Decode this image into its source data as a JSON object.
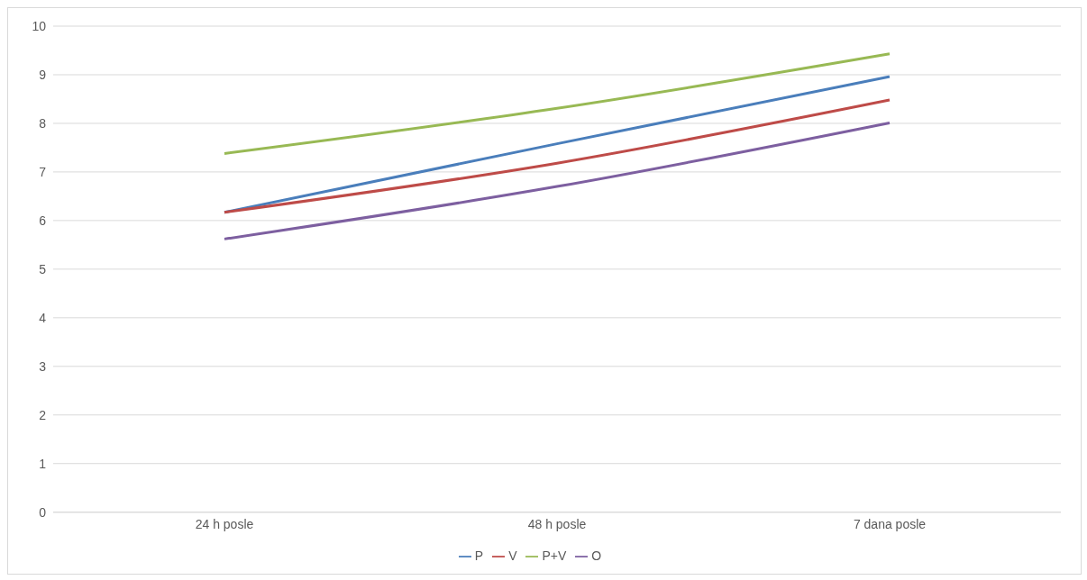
{
  "chart_data": {
    "type": "line",
    "categories": [
      "24 h posle",
      "48 h posle",
      "7 dana posle"
    ],
    "series": [
      {
        "name": "P",
        "color": "#4a7ebb",
        "values": [
          6.17,
          7.58,
          8.96
        ]
      },
      {
        "name": "V",
        "color": "#be4b48",
        "values": [
          6.17,
          7.18,
          8.48
        ]
      },
      {
        "name": "P+V",
        "color": "#98b954",
        "values": [
          7.38,
          8.31,
          9.43
        ]
      },
      {
        "name": "O",
        "color": "#7d5fa0",
        "values": [
          5.62,
          6.7,
          8.01
        ]
      }
    ],
    "ylim": [
      0,
      10
    ],
    "yticks": [
      0,
      1,
      2,
      3,
      4,
      5,
      6,
      7,
      8,
      9,
      10
    ],
    "grid": "y",
    "legend": "bottom",
    "marker": "none"
  }
}
